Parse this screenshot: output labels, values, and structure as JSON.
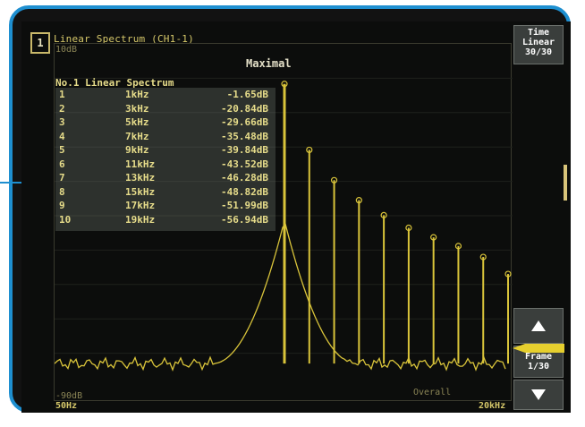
{
  "channel_badge": "1",
  "title": "Linear Spectrum (CH1-1)",
  "y_top_label": "10dB",
  "y_bottom_label": "-90dB",
  "x_left_label": "50Hz",
  "x_right_label": "20kHz",
  "mode_label": "Maximal",
  "overall_label": "Overall",
  "table": {
    "header": "No.1 Linear Spectrum",
    "rows": [
      {
        "no": "1",
        "freq": "1kHz",
        "db": "-1.65dB"
      },
      {
        "no": "2",
        "freq": "3kHz",
        "db": "-20.84dB"
      },
      {
        "no": "3",
        "freq": "5kHz",
        "db": "-29.66dB"
      },
      {
        "no": "4",
        "freq": "7kHz",
        "db": "-35.48dB"
      },
      {
        "no": "5",
        "freq": "9kHz",
        "db": "-39.84dB"
      },
      {
        "no": "6",
        "freq": "11kHz",
        "db": "-43.52dB"
      },
      {
        "no": "7",
        "freq": "13kHz",
        "db": "-46.28dB"
      },
      {
        "no": "8",
        "freq": "15kHz",
        "db": "-48.82dB"
      },
      {
        "no": "9",
        "freq": "17kHz",
        "db": "-51.99dB"
      },
      {
        "no": "10",
        "freq": "19kHz",
        "db": "-56.94dB"
      }
    ]
  },
  "side": {
    "top_line1": "Time",
    "top_line2": "Linear",
    "top_line3": "30/30",
    "frame_line1": "Frame",
    "frame_line2": "1/30"
  },
  "colors": {
    "bezel": "#1e8fd0",
    "trace": "#d9c43a",
    "text_yellow": "#e6dc8a"
  },
  "chart_data": {
    "type": "line",
    "xlabel": "",
    "ylabel": "",
    "xlim_labels": [
      "50Hz",
      "20kHz"
    ],
    "ylim_labels": [
      "-90dB",
      "10dB"
    ],
    "ylim": [
      -90,
      10
    ],
    "harmonics": {
      "freq_khz": [
        1,
        3,
        5,
        7,
        9,
        11,
        13,
        15,
        17,
        19
      ],
      "level_db": [
        -1.65,
        -20.84,
        -29.66,
        -35.48,
        -39.84,
        -43.52,
        -46.28,
        -48.82,
        -51.99,
        -56.94
      ]
    },
    "noise_floor_db": -83
  }
}
